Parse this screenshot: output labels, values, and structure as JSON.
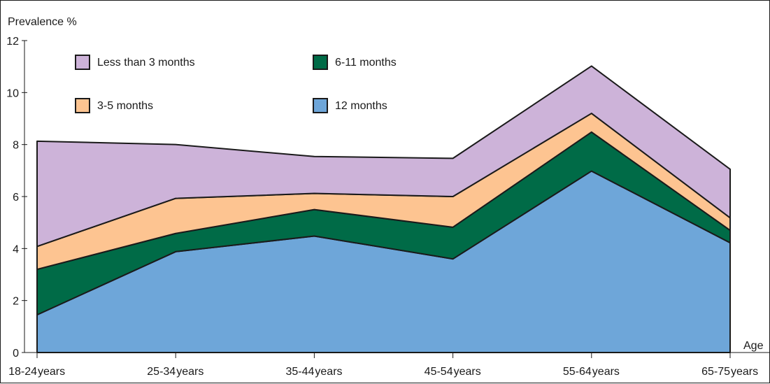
{
  "chart_data": {
    "type": "area",
    "stacked": true,
    "ylabel": "Prevalence %",
    "xlabel": "Age",
    "ylim": [
      0,
      12
    ],
    "yticks": [
      0,
      2,
      4,
      6,
      8,
      10,
      12
    ],
    "categories": [
      "18-24 years",
      "25-34 years",
      "35-44 years",
      "45-54 years",
      "55-64 years",
      "65-75 years"
    ],
    "series": [
      {
        "name": "12 months",
        "color": "#6ea6d9",
        "values": [
          1.45,
          3.88,
          4.48,
          3.6,
          6.98,
          4.22
        ]
      },
      {
        "name": "6-11 months",
        "color": "#006b47",
        "values": [
          1.75,
          0.7,
          1.02,
          1.22,
          1.5,
          0.48
        ]
      },
      {
        "name": "3-5 months",
        "color": "#fdc491",
        "values": [
          0.88,
          1.35,
          0.62,
          1.18,
          0.72,
          0.48
        ]
      },
      {
        "name": "Less than 3 months",
        "color": "#cdb3d9",
        "values": [
          4.05,
          2.07,
          1.42,
          1.47,
          1.82,
          1.87
        ]
      }
    ],
    "legend": [
      {
        "label": "Less than 3 months",
        "color": "#cdb3d9"
      },
      {
        "label": "6-11 months",
        "color": "#006b47"
      },
      {
        "label": "3-5 months",
        "color": "#fdc491"
      },
      {
        "label": "12 months",
        "color": "#6ea6d9"
      }
    ],
    "grid": false,
    "legend_placement": "top-left inside plot"
  }
}
